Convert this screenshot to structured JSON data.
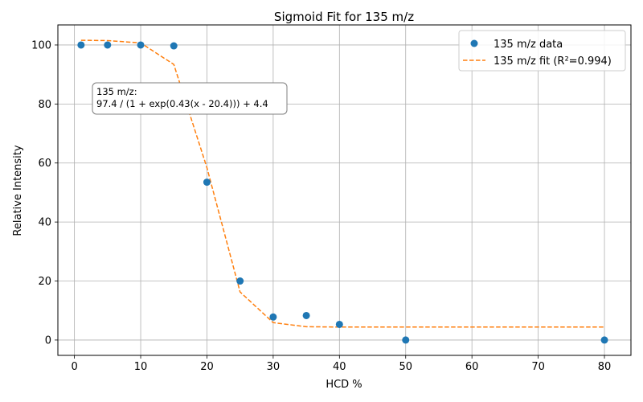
{
  "chart_data": {
    "type": "scatter",
    "title": "Sigmoid Fit for 135 m/z",
    "xlabel": "HCD %",
    "ylabel": "Relative Intensity",
    "xlim": [
      -2.5,
      84
    ],
    "ylim": [
      -5.2,
      106.8
    ],
    "xticks": [
      0,
      10,
      20,
      30,
      40,
      50,
      60,
      70,
      80
    ],
    "yticks": [
      0,
      20,
      40,
      60,
      80,
      100
    ],
    "grid": true,
    "legend_position": "top-right",
    "series": [
      {
        "name": "135 m/z data",
        "kind": "points",
        "color": "#1f77b4",
        "x": [
          1,
          5,
          10,
          15,
          20,
          25,
          30,
          35,
          40,
          50,
          80
        ],
        "y": [
          100,
          100,
          100,
          99.7,
          53.5,
          20,
          7.8,
          8.3,
          5.3,
          0,
          0
        ]
      },
      {
        "name": "135 m/z fit (R²=0.994)",
        "kind": "dashed-line",
        "color": "#ff7f0e",
        "x": [
          1,
          5,
          10,
          15,
          20,
          25,
          30,
          35,
          40,
          50,
          80
        ],
        "y": [
          101.6,
          101.5,
          100.7,
          93.4,
          58.4,
          16.3,
          5.9,
          4.5,
          4.4,
          4.4,
          4.4
        ]
      }
    ],
    "annotation": {
      "line1": "135 m/z:",
      "line2": "97.4 / (1 + exp(0.43(x - 20.4))) + 4.4"
    }
  }
}
